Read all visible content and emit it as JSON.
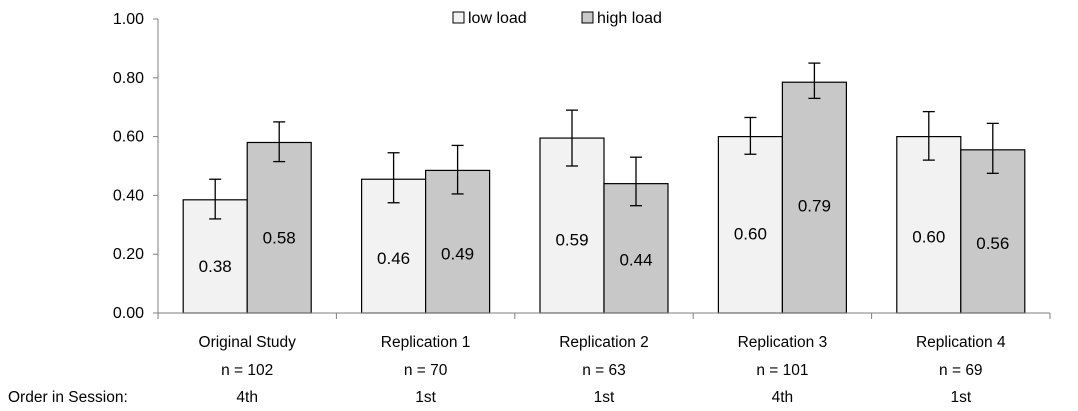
{
  "chart_data": {
    "type": "bar",
    "categories": [
      "Original Study",
      "Replication 1",
      "Replication 2",
      "Replication 3",
      "Replication 4"
    ],
    "category_sample_sizes": [
      "n = 102",
      "n = 70",
      "n = 63",
      "n = 101",
      "n = 69"
    ],
    "order_label": "Order in Session:",
    "order_values": [
      "4th",
      "1st",
      "1st",
      "4th",
      "1st"
    ],
    "series": [
      {
        "name": "low load",
        "color": "#f2f2f2",
        "values": [
          0.385,
          0.455,
          0.595,
          0.6,
          0.6
        ],
        "labels": [
          "0.38",
          "0.46",
          "0.59",
          "0.60",
          "0.60"
        ],
        "err_low": [
          0.32,
          0.375,
          0.5,
          0.54,
          0.52
        ],
        "err_high": [
          0.455,
          0.545,
          0.69,
          0.665,
          0.685
        ]
      },
      {
        "name": "high load",
        "color": "#c8c8c8",
        "values": [
          0.58,
          0.485,
          0.44,
          0.785,
          0.555
        ],
        "labels": [
          "0.58",
          "0.49",
          "0.44",
          "0.79",
          "0.56"
        ],
        "err_low": [
          0.515,
          0.405,
          0.365,
          0.73,
          0.475
        ],
        "err_high": [
          0.65,
          0.57,
          0.53,
          0.85,
          0.645
        ]
      }
    ],
    "y_ticks": [
      "0.00",
      "0.20",
      "0.40",
      "0.60",
      "0.80",
      "1.00"
    ],
    "ylim": [
      0,
      1
    ],
    "legend_position": "top-center",
    "grid": false
  }
}
